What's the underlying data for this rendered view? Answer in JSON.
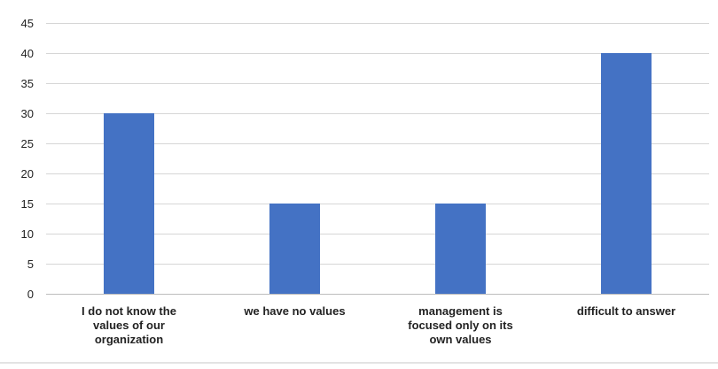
{
  "chart_data": {
    "type": "bar",
    "categories": [
      "I do not know the values of our organization",
      "we have no values",
      "management is focused only on its own values",
      "difficult to answer"
    ],
    "category_label_lines": [
      [
        "I do not know the",
        "values of our",
        "organization"
      ],
      [
        "we have no values"
      ],
      [
        "management is",
        "focused only on its",
        "own values"
      ],
      [
        "difficult to answer"
      ]
    ],
    "values": [
      30,
      15,
      15,
      40
    ],
    "ylim": [
      0,
      45
    ],
    "yticks": [
      0,
      5,
      10,
      15,
      20,
      25,
      30,
      35,
      40,
      45
    ],
    "title": "",
    "xlabel": "",
    "ylabel": "",
    "grid": true,
    "legend": "none",
    "bar_color": "#4472c4"
  }
}
